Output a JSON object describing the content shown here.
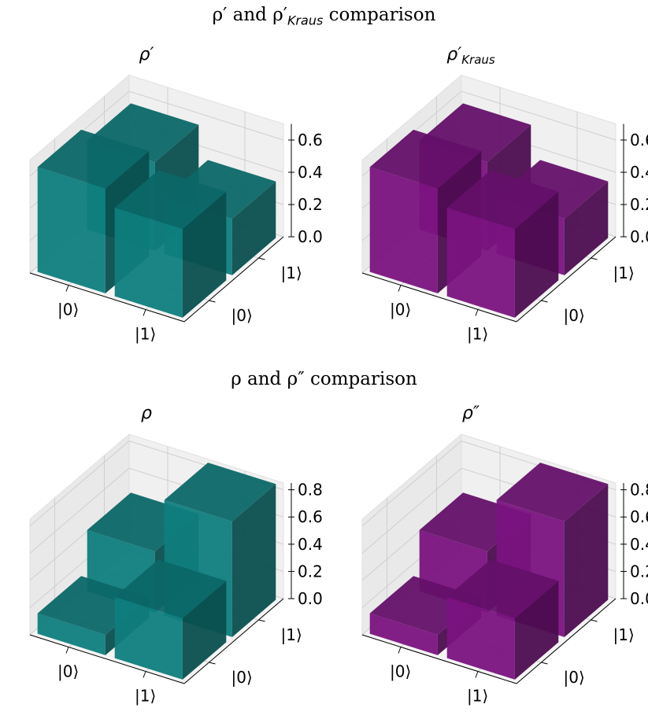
{
  "figure": {
    "rows": [
      {
        "suptitle_main": "ρ′ and ρ′",
        "suptitle_sub": "Kraus",
        "suptitle_tail": " comparison"
      },
      {
        "suptitle_main": "ρ and ρ″",
        "suptitle_sub": "",
        "suptitle_tail": " comparison"
      }
    ]
  },
  "colors": {
    "teal": "#0f7d7d",
    "purple": "#7a1380"
  },
  "chart_data": [
    {
      "type": "bar3d",
      "title": "ρ′",
      "title_sub": "",
      "color": "teal",
      "x_ticklabels": [
        "|0⟩",
        "|1⟩"
      ],
      "y_ticklabels": [
        "|0⟩",
        "|1⟩"
      ],
      "z_ticks": [
        "0.0",
        "0.2",
        "0.4",
        "0.6"
      ],
      "zlim": [
        0,
        0.7
      ],
      "bars": [
        {
          "x": "|0⟩",
          "y": "|0⟩",
          "value": 0.65
        },
        {
          "x": "|0⟩",
          "y": "|1⟩",
          "value": 0.55
        },
        {
          "x": "|1⟩",
          "y": "|0⟩",
          "value": 0.55
        },
        {
          "x": "|1⟩",
          "y": "|1⟩",
          "value": 0.35
        }
      ]
    },
    {
      "type": "bar3d",
      "title": "ρ′",
      "title_sub": "Kraus",
      "color": "purple",
      "x_ticklabels": [
        "|0⟩",
        "|1⟩"
      ],
      "y_ticklabels": [
        "|0⟩",
        "|1⟩"
      ],
      "z_ticks": [
        "0.0",
        "0.2",
        "0.4",
        "0.6"
      ],
      "zlim": [
        0,
        0.7
      ],
      "bars": [
        {
          "x": "|0⟩",
          "y": "|0⟩",
          "value": 0.65
        },
        {
          "x": "|0⟩",
          "y": "|1⟩",
          "value": 0.55
        },
        {
          "x": "|1⟩",
          "y": "|0⟩",
          "value": 0.55
        },
        {
          "x": "|1⟩",
          "y": "|1⟩",
          "value": 0.35
        }
      ]
    },
    {
      "type": "bar3d",
      "title": "ρ",
      "title_sub": "",
      "color": "teal",
      "x_ticklabels": [
        "|0⟩",
        "|1⟩"
      ],
      "y_ticklabels": [
        "|0⟩",
        "|1⟩"
      ],
      "z_ticks": [
        "0.0",
        "0.2",
        "0.4",
        "0.6",
        "0.8"
      ],
      "zlim": [
        0,
        0.85
      ],
      "bars": [
        {
          "x": "|0⟩",
          "y": "|0⟩",
          "value": 0.15
        },
        {
          "x": "|0⟩",
          "y": "|1⟩",
          "value": 0.45
        },
        {
          "x": "|1⟩",
          "y": "|0⟩",
          "value": 0.45
        },
        {
          "x": "|1⟩",
          "y": "|1⟩",
          "value": 0.85
        }
      ]
    },
    {
      "type": "bar3d",
      "title": "ρ″",
      "title_sub": "",
      "color": "purple",
      "x_ticklabels": [
        "|0⟩",
        "|1⟩"
      ],
      "y_ticklabels": [
        "|0⟩",
        "|1⟩"
      ],
      "z_ticks": [
        "0.0",
        "0.2",
        "0.4",
        "0.6",
        "0.8"
      ],
      "zlim": [
        0,
        0.85
      ],
      "bars": [
        {
          "x": "|0⟩",
          "y": "|0⟩",
          "value": 0.15
        },
        {
          "x": "|0⟩",
          "y": "|1⟩",
          "value": 0.45
        },
        {
          "x": "|1⟩",
          "y": "|0⟩",
          "value": 0.45
        },
        {
          "x": "|1⟩",
          "y": "|1⟩",
          "value": 0.85
        }
      ]
    }
  ]
}
